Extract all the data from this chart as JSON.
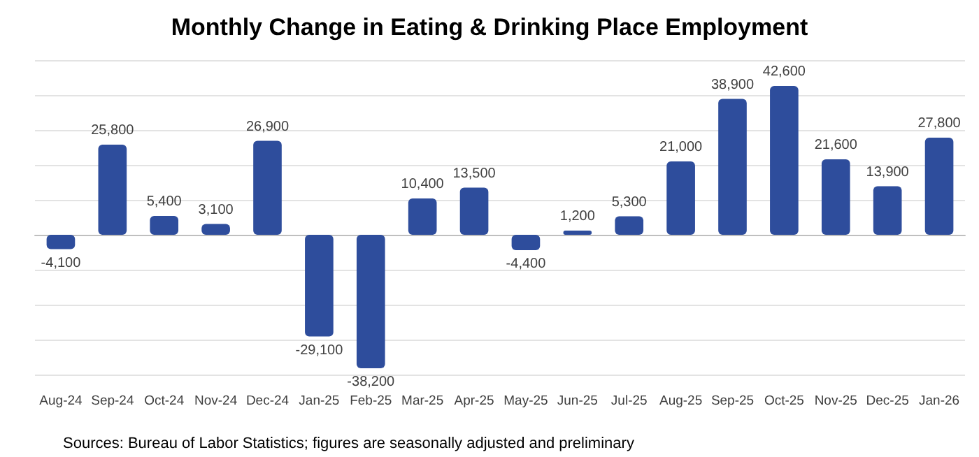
{
  "chart_data": {
    "type": "bar",
    "title": "Monthly Change in Eating & Drinking Place Employment",
    "categories": [
      "Aug-24",
      "Sep-24",
      "Oct-24",
      "Nov-24",
      "Dec-24",
      "Jan-25",
      "Feb-25",
      "Mar-25",
      "Apr-25",
      "May-25",
      "Jun-25",
      "Jul-25",
      "Aug-25",
      "Sep-25",
      "Oct-25",
      "Nov-25",
      "Dec-25",
      "Jan-26"
    ],
    "values": [
      -4100,
      25800,
      5400,
      3100,
      26900,
      -29100,
      -38200,
      10400,
      13500,
      -4400,
      1200,
      5300,
      21000,
      38900,
      42600,
      21600,
      13900,
      27800
    ],
    "color": "#2e4d9c",
    "value_labels": [
      "-4,100",
      "25,800",
      "5,400",
      "3,100",
      "26,900",
      "-29,100",
      "-38,200",
      "10,400",
      "13,500",
      "-4,400",
      "1,200",
      "5,300",
      "21,000",
      "38,900",
      "42,600",
      "21,600",
      "13,900",
      "27,800"
    ],
    "grid": "y",
    "tick_labels": "x",
    "annotations": [
      "Sources: Bureau of Labor Statistics; figures are seasonally adjusted and preliminary"
    ]
  }
}
